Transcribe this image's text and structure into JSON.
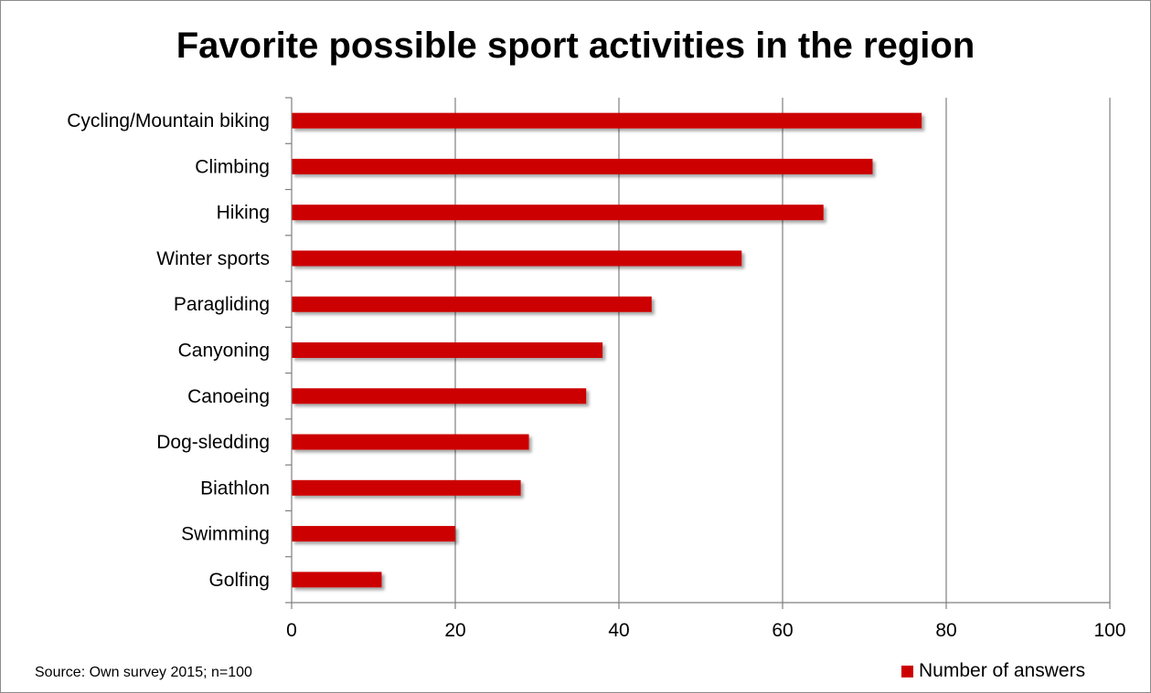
{
  "chart_data": {
    "type": "bar",
    "orientation": "horizontal",
    "title": "Favorite possible sport activities in the region",
    "categories": [
      "Cycling/Mountain biking",
      "Climbing",
      "Hiking",
      "Winter sports",
      "Paragliding",
      "Canyoning",
      "Canoeing",
      "Dog-sledding",
      "Biathlon",
      "Swimming",
      "Golfing"
    ],
    "series": [
      {
        "name": "Number of answers",
        "values": [
          77,
          71,
          65,
          55,
          44,
          38,
          36,
          29,
          28,
          20,
          11
        ],
        "color": "#cc0000"
      }
    ],
    "xlim": [
      0,
      100
    ],
    "xticks": [
      "0",
      "20",
      "40",
      "60",
      "80",
      "100"
    ],
    "grid": "vertical",
    "legend": "bottom-right"
  },
  "footer": {
    "source": "Source: Own survey 2015; n=100"
  }
}
